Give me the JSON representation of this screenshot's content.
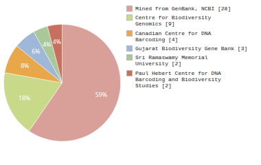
{
  "chart_data": {
    "type": "pie",
    "categories": [
      "Mined from GenBank, NCBI [28]",
      "Centre for Biodiversity\nGenomics [9]",
      "Canadian Centre for DNA\nBarcoding [4]",
      "Gujarat Biodiversity Gene Bank [3]",
      "Sri Ramaswamy Memorial\nUniversity [2]",
      "Paul Hebert Centre for DNA\nBarcoding and Biodiversity\nStudies [2]"
    ],
    "values": [
      59,
      18,
      8,
      6,
      4,
      4
    ],
    "value_labels": [
      "59%",
      "18%",
      "8%",
      "6%",
      "4%",
      "4%"
    ],
    "colors": [
      "#d9a09a",
      "#c8d98a",
      "#e8a84a",
      "#a0b8d8",
      "#a8c898",
      "#c87060"
    ],
    "data_labels": true,
    "legend": "right"
  }
}
